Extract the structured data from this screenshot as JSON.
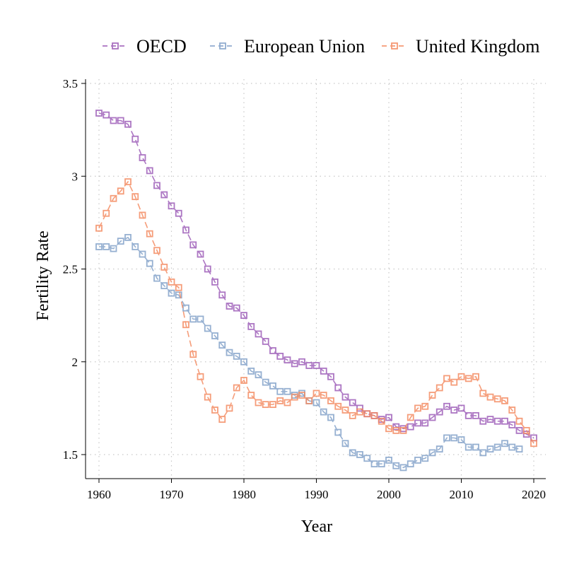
{
  "chart_data": {
    "type": "line",
    "xlabel": "Year",
    "ylabel": "Fertility Rate",
    "xlim": [
      1960,
      2020
    ],
    "ylim": [
      1.35,
      3.5
    ],
    "xticks": [
      "1960",
      "1970",
      "1980",
      "1990",
      "2000",
      "2010",
      "2020"
    ],
    "yticks": [
      "1.5",
      "2",
      "2.5",
      "3",
      "3.5"
    ],
    "grid": true,
    "legend_position": "top",
    "marker": "hollow-square",
    "series": [
      {
        "name": "OECD",
        "color": "#9b59b6",
        "x": [
          1960,
          1961,
          1962,
          1963,
          1964,
          1965,
          1966,
          1967,
          1968,
          1969,
          1970,
          1971,
          1972,
          1973,
          1974,
          1975,
          1976,
          1977,
          1978,
          1979,
          1980,
          1981,
          1982,
          1983,
          1984,
          1985,
          1986,
          1987,
          1988,
          1989,
          1990,
          1991,
          1992,
          1993,
          1994,
          1995,
          1996,
          1997,
          1998,
          1999,
          2000,
          2001,
          2002,
          2003,
          2004,
          2005,
          2006,
          2007,
          2008,
          2009,
          2010,
          2011,
          2012,
          2013,
          2014,
          2015,
          2016,
          2017,
          2018,
          2019,
          2020
        ],
        "values": [
          3.34,
          3.33,
          3.3,
          3.3,
          3.28,
          3.2,
          3.1,
          3.03,
          2.95,
          2.9,
          2.84,
          2.8,
          2.71,
          2.63,
          2.58,
          2.5,
          2.43,
          2.36,
          2.3,
          2.29,
          2.25,
          2.19,
          2.15,
          2.11,
          2.06,
          2.03,
          2.01,
          1.99,
          2.0,
          1.98,
          1.98,
          1.95,
          1.92,
          1.86,
          1.81,
          1.78,
          1.75,
          1.72,
          1.71,
          1.69,
          1.7,
          1.65,
          1.64,
          1.65,
          1.67,
          1.67,
          1.7,
          1.73,
          1.76,
          1.74,
          1.75,
          1.71,
          1.71,
          1.68,
          1.69,
          1.68,
          1.68,
          1.66,
          1.63,
          1.61,
          1.59
        ]
      },
      {
        "name": "European Union",
        "color": "#7f9fc8",
        "x": [
          1960,
          1961,
          1962,
          1963,
          1964,
          1965,
          1966,
          1967,
          1968,
          1969,
          1970,
          1971,
          1972,
          1973,
          1974,
          1975,
          1976,
          1977,
          1978,
          1979,
          1980,
          1981,
          1982,
          1983,
          1984,
          1985,
          1986,
          1987,
          1988,
          1989,
          1990,
          1991,
          1992,
          1993,
          1994,
          1995,
          1996,
          1997,
          1998,
          1999,
          2000,
          2001,
          2002,
          2003,
          2004,
          2005,
          2006,
          2007,
          2008,
          2009,
          2010,
          2011,
          2012,
          2013,
          2014,
          2015,
          2016,
          2017,
          2018
        ],
        "values": [
          2.62,
          2.62,
          2.61,
          2.65,
          2.67,
          2.62,
          2.58,
          2.53,
          2.45,
          2.41,
          2.37,
          2.36,
          2.29,
          2.23,
          2.23,
          2.18,
          2.14,
          2.09,
          2.05,
          2.03,
          2.0,
          1.95,
          1.93,
          1.89,
          1.87,
          1.84,
          1.84,
          1.82,
          1.83,
          1.79,
          1.78,
          1.73,
          1.7,
          1.62,
          1.56,
          1.51,
          1.5,
          1.48,
          1.45,
          1.45,
          1.47,
          1.44,
          1.43,
          1.45,
          1.47,
          1.48,
          1.51,
          1.53,
          1.59,
          1.59,
          1.58,
          1.54,
          1.54,
          1.51,
          1.53,
          1.54,
          1.56,
          1.54,
          1.53
        ]
      },
      {
        "name": "United Kingdom",
        "color": "#f4885d",
        "x": [
          1960,
          1961,
          1962,
          1963,
          1964,
          1965,
          1966,
          1967,
          1968,
          1969,
          1970,
          1971,
          1972,
          1973,
          1974,
          1975,
          1976,
          1977,
          1978,
          1979,
          1980,
          1981,
          1982,
          1983,
          1984,
          1985,
          1986,
          1987,
          1988,
          1989,
          1990,
          1991,
          1992,
          1993,
          1994,
          1995,
          1996,
          1997,
          1998,
          1999,
          2000,
          2001,
          2002,
          2003,
          2004,
          2005,
          2006,
          2007,
          2008,
          2009,
          2010,
          2011,
          2012,
          2013,
          2014,
          2015,
          2016,
          2017,
          2018,
          2019,
          2020
        ],
        "values": [
          2.72,
          2.8,
          2.88,
          2.92,
          2.97,
          2.89,
          2.79,
          2.69,
          2.6,
          2.51,
          2.43,
          2.4,
          2.2,
          2.04,
          1.92,
          1.81,
          1.74,
          1.69,
          1.75,
          1.86,
          1.9,
          1.82,
          1.78,
          1.77,
          1.77,
          1.79,
          1.78,
          1.81,
          1.82,
          1.79,
          1.83,
          1.82,
          1.79,
          1.76,
          1.74,
          1.71,
          1.73,
          1.72,
          1.71,
          1.68,
          1.64,
          1.63,
          1.63,
          1.7,
          1.75,
          1.76,
          1.82,
          1.86,
          1.91,
          1.89,
          1.92,
          1.91,
          1.92,
          1.83,
          1.81,
          1.8,
          1.79,
          1.74,
          1.68,
          1.63,
          1.56
        ]
      }
    ]
  }
}
